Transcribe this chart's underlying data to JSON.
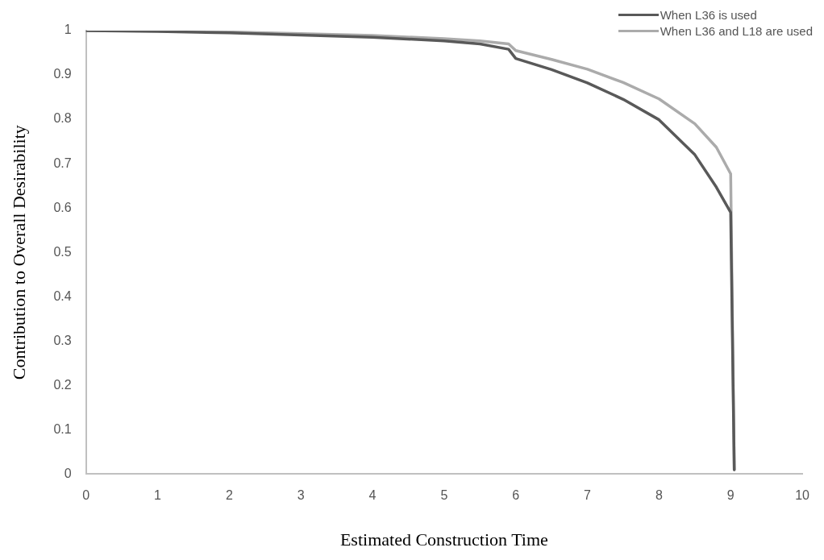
{
  "chart_data": {
    "type": "line",
    "xlabel": "Estimated Construction Time",
    "ylabel": "Contribution to Overall Desirability",
    "xlim": [
      0,
      10
    ],
    "xticks": [
      0,
      1,
      2,
      3,
      4,
      5,
      6,
      7,
      8,
      9,
      10
    ],
    "ylim": [
      0,
      1
    ],
    "yticks": [
      0,
      0.1,
      0.2,
      0.3,
      0.4,
      0.5,
      0.6,
      0.7,
      0.8,
      0.9,
      1
    ],
    "grid": false,
    "legend": "top right",
    "marker": "none",
    "line_style": "solid",
    "series": [
      {
        "name": "When L36 is used",
        "color": "#595959",
        "x": [
          0,
          1,
          2,
          3,
          4,
          5,
          5.5,
          5.9,
          6.0,
          6.5,
          7,
          7.5,
          8,
          8.5,
          8.8,
          9.0,
          9.05
        ],
        "values": [
          1,
          0.998,
          0.995,
          0.99,
          0.985,
          0.977,
          0.97,
          0.958,
          0.937,
          0.912,
          0.882,
          0.845,
          0.799,
          0.72,
          0.647,
          0.59,
          0.01
        ]
      },
      {
        "name": "When L36 and L18 are used",
        "color": "#ababab",
        "x": [
          0,
          1,
          2,
          3,
          4,
          5,
          5.5,
          5.9,
          6.0,
          6.5,
          7,
          7.5,
          8,
          8.5,
          8.8,
          9.0,
          9.05
        ],
        "values": [
          1,
          0.999,
          0.997,
          0.993,
          0.989,
          0.982,
          0.977,
          0.97,
          0.955,
          0.935,
          0.913,
          0.883,
          0.846,
          0.79,
          0.737,
          0.677,
          0.01
        ]
      }
    ]
  }
}
